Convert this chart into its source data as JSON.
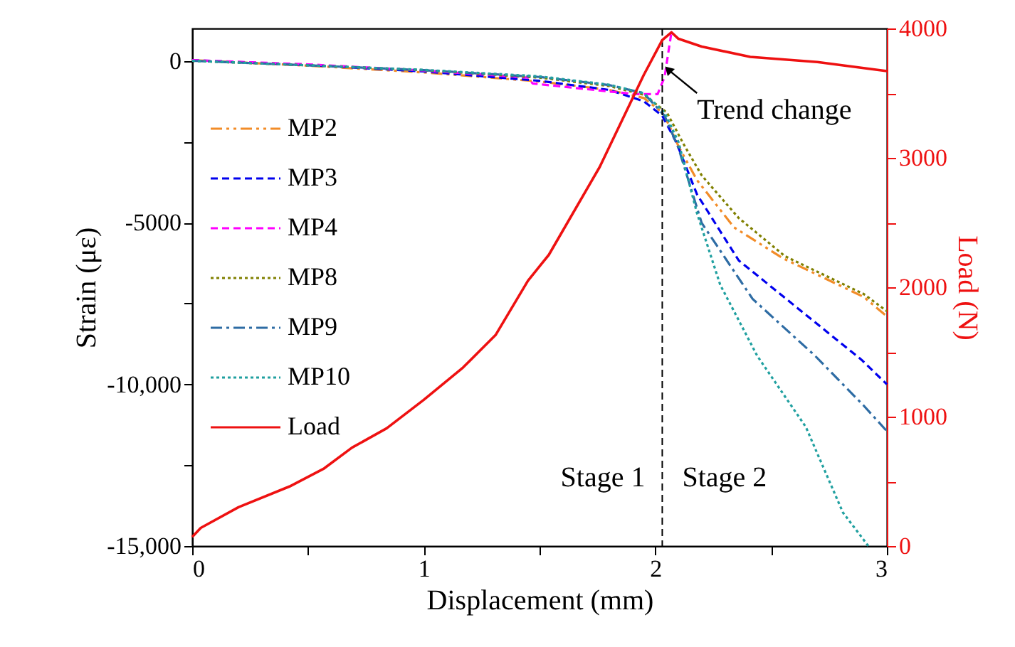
{
  "chart_data": {
    "type": "line",
    "xlabel": "Displacement (mm)",
    "ylabel": "Strain (με)",
    "y2label": "Load (N)",
    "xlim": [
      0,
      3
    ],
    "xticks": [
      0,
      {
        "value": 0.5,
        "label": null
      },
      1,
      {
        "value": 1.5,
        "label": null
      },
      2,
      {
        "value": 2.5,
        "label": null
      },
      3
    ],
    "ylim": [
      -15000,
      1000
    ],
    "yticks": [
      {
        "value": -15000,
        "label": "-15,000"
      },
      {
        "value": -12500,
        "label": null
      },
      {
        "value": -10000,
        "label": "-10,000"
      },
      {
        "value": -7500,
        "label": null
      },
      -5000,
      {
        "value": -2500,
        "label": null
      },
      0
    ],
    "y2lim": [
      0,
      4000
    ],
    "y2ticks": [
      0,
      {
        "value": 500,
        "label": null
      },
      1000,
      {
        "value": 1500,
        "label": null
      },
      2000,
      {
        "value": 2500,
        "label": null
      },
      3000,
      {
        "value": 3500,
        "label": null
      },
      4000
    ],
    "grid": false,
    "legend": "top left",
    "marker": "none",
    "series": [
      {
        "name": "MP2",
        "color": "#f28c28",
        "line_style": "dashdotdot",
        "x": [
          0,
          0.5,
          1,
          1.5,
          1.8,
          1.95,
          2.03,
          2.06,
          2.1,
          2.18,
          2.34,
          2.55,
          2.9,
          3
        ],
        "values": [
          20,
          -150,
          -360,
          -640,
          -900,
          -1150,
          -1600,
          -2000,
          -2640,
          -3690,
          -5150,
          -6100,
          -7300,
          -7900
        ]
      },
      {
        "name": "MP3",
        "color": "#0000ee",
        "line_style": "dashed",
        "x": [
          0,
          0.5,
          1,
          1.5,
          1.8,
          1.95,
          2.03,
          2.09,
          2.18,
          2.36,
          2.61,
          2.89,
          3
        ],
        "values": [
          20,
          -130,
          -330,
          -620,
          -900,
          -1250,
          -1700,
          -2510,
          -4130,
          -6170,
          -7620,
          -9240,
          -10000
        ]
      },
      {
        "name": "MP4",
        "color": "#ff00ff",
        "line_style": "dashed",
        "x": [
          0,
          0.5,
          1,
          1.45,
          1.47,
          1.8,
          1.92,
          2.01,
          2.04,
          2.07
        ],
        "values": [
          20,
          -110,
          -300,
          -520,
          -700,
          -950,
          -1030,
          -1030,
          -500,
          900
        ]
      },
      {
        "name": "MP8",
        "color": "#808000",
        "line_style": "dotted",
        "x": [
          0,
          0.5,
          1,
          1.5,
          1.8,
          1.95,
          2.05,
          2.12,
          2.2,
          2.36,
          2.56,
          2.9,
          3
        ],
        "values": [
          0,
          -140,
          -290,
          -520,
          -780,
          -1050,
          -1600,
          -2550,
          -3540,
          -4860,
          -6040,
          -7210,
          -7740
        ]
      },
      {
        "name": "MP9",
        "color": "#2e6ca4",
        "line_style": "dashdot",
        "x": [
          0,
          0.5,
          1,
          1.5,
          1.8,
          1.95,
          2.04,
          2.1,
          2.2,
          2.42,
          2.69,
          2.9,
          3
        ],
        "values": [
          0,
          -140,
          -290,
          -500,
          -750,
          -1000,
          -1700,
          -2700,
          -5010,
          -7360,
          -9120,
          -10660,
          -11450
        ]
      },
      {
        "name": "MP10",
        "color": "#20a0a0",
        "line_style": "dotted",
        "x": [
          0,
          0.5,
          1,
          1.5,
          1.8,
          1.95,
          2.04,
          2.1,
          2.18,
          2.28,
          2.44,
          2.65,
          2.81,
          2.92
        ],
        "values": [
          0,
          -140,
          -280,
          -480,
          -740,
          -1000,
          -1600,
          -2510,
          -4710,
          -6920,
          -9120,
          -11320,
          -13960,
          -15000
        ]
      },
      {
        "name": "Load",
        "color": "#ee1111",
        "line_style": "solid",
        "axis": "y2",
        "x": [
          0,
          0.037,
          0.2,
          0.42,
          0.57,
          0.69,
          0.84,
          1.0,
          1.17,
          1.31,
          1.45,
          1.54,
          1.76,
          1.95,
          2.03,
          2.07,
          2.1,
          2.2,
          2.41,
          2.7,
          3
        ],
        "values": [
          70,
          140,
          300,
          460,
          600,
          760,
          910,
          1130,
          1380,
          1630,
          2050,
          2250,
          2930,
          3640,
          3910,
          3970,
          3920,
          3860,
          3780,
          3740,
          3670
        ]
      }
    ],
    "ref_lines": [
      {
        "axis": "x",
        "value": 2.03,
        "color": "#000000",
        "line_style": "dashed"
      }
    ],
    "annotations": [
      {
        "text": "Trend change",
        "x": 2.06,
        "y": -300
      },
      "Stage 1",
      "Stage 2"
    ]
  }
}
